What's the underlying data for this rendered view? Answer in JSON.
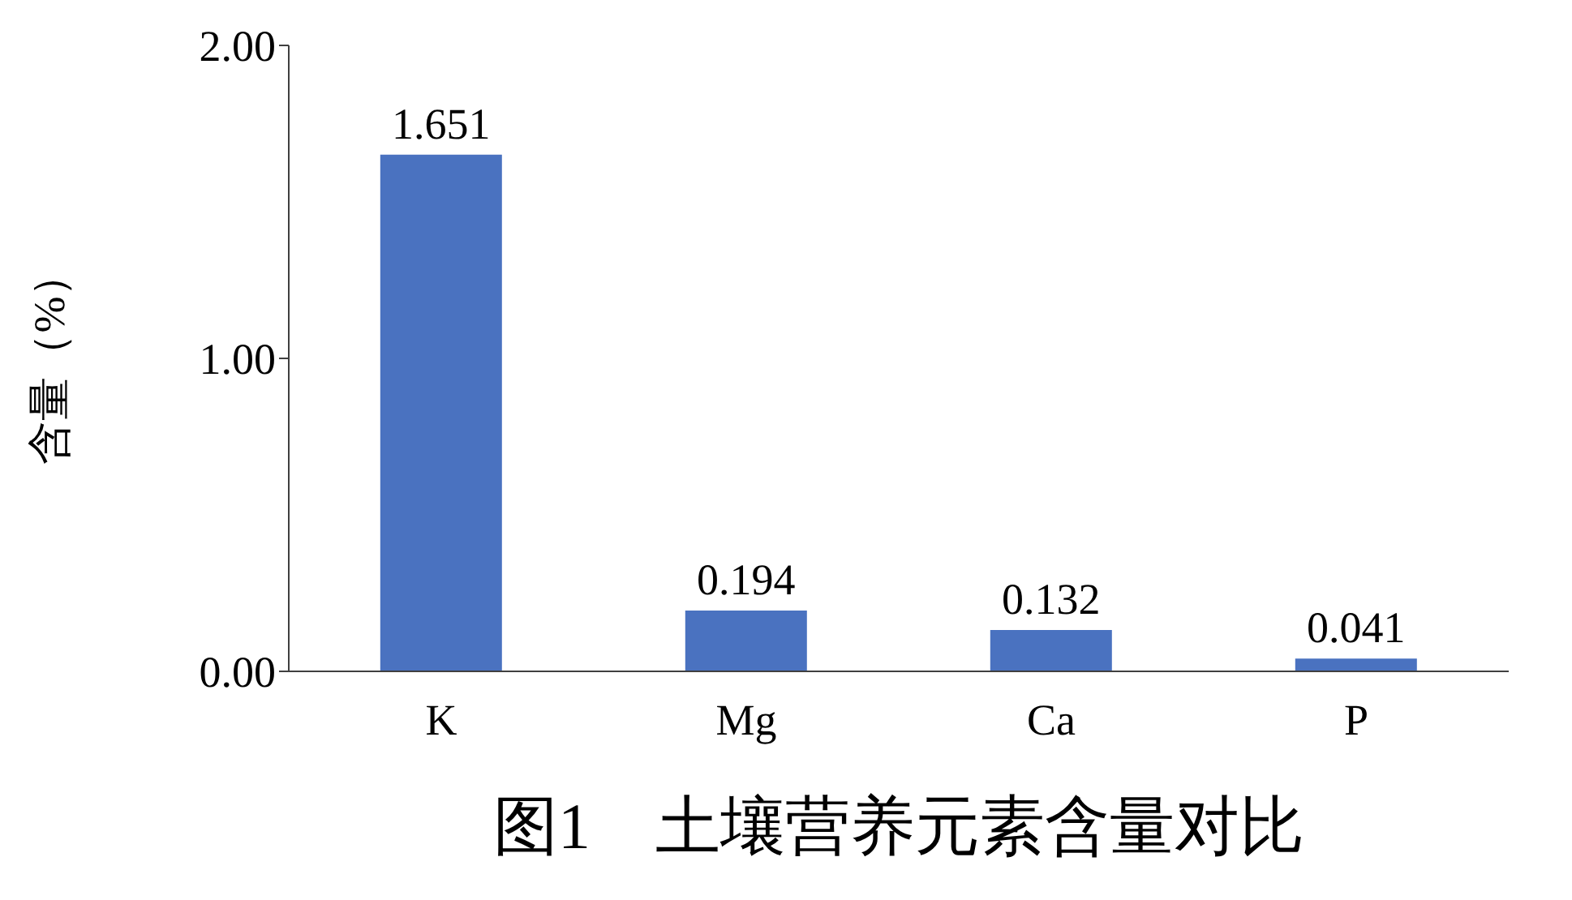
{
  "chart_data": {
    "type": "bar",
    "title": "图1　土壤营养元素含量对比",
    "ylabel": "含量（%）",
    "categories": [
      "K",
      "Mg",
      "Ca",
      "P"
    ],
    "values": [
      1.651,
      0.194,
      0.132,
      0.041
    ],
    "color": "#4a72c0",
    "ylim": [
      0,
      2
    ],
    "yticks": [
      {
        "value": 0,
        "label": "0.00"
      },
      {
        "value": 1,
        "label": "1.00"
      },
      {
        "value": 2,
        "label": "2.00"
      }
    ],
    "data_labels": true,
    "grid": false,
    "legend": false
  }
}
